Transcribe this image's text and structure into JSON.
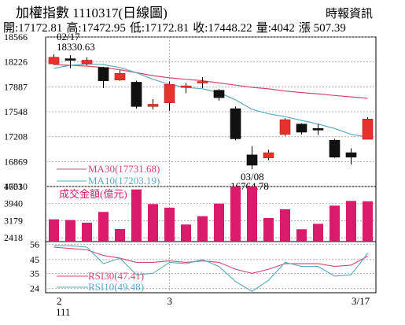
{
  "header": {
    "title": "加權指數 1110317(日線圖)",
    "source": "時報資訊",
    "stats": {
      "open": "開:17172.81",
      "high": "高:17472.95",
      "low": "低:17172.81",
      "close": "收:17448.22",
      "volume": "量:4042",
      "change": "漲 507.39"
    }
  },
  "colors": {
    "up": "#e8302c",
    "down": "#111111",
    "bar": "#d81b6a",
    "ma30": "#d8466e",
    "ma10": "#5aa9c6"
  },
  "chart_data": [
    {
      "type": "candlestick",
      "title": "加權指數 日線圖",
      "y_ticks": [
        "18566",
        "18226",
        "17887",
        "17548",
        "17208",
        "16869",
        "16530"
      ],
      "ylim": [
        16530,
        18566
      ],
      "annotations": [
        {
          "label": "02/17",
          "value": "18330.63"
        },
        {
          "label": "03/08",
          "value": "16764.78"
        }
      ],
      "candles": [
        {
          "open": 18200,
          "close": 18290,
          "high": 18330.63,
          "low": 18190
        },
        {
          "open": 18270,
          "close": 18260,
          "high": 18320,
          "low": 18140
        },
        {
          "open": 18200,
          "close": 18250,
          "high": 18290,
          "low": 18180
        },
        {
          "open": 18150,
          "close": 17970,
          "high": 18160,
          "low": 17870
        },
        {
          "open": 17980,
          "close": 18070,
          "high": 18110,
          "low": 17970
        },
        {
          "open": 17950,
          "close": 17620,
          "high": 17970,
          "low": 17590
        },
        {
          "open": 17620,
          "close": 17650,
          "high": 17720,
          "low": 17580
        },
        {
          "open": 17670,
          "close": 17920,
          "high": 17960,
          "low": 17560
        },
        {
          "open": 17880,
          "close": 17900,
          "high": 17940,
          "low": 17800
        },
        {
          "open": 17950,
          "close": 17960,
          "high": 18020,
          "low": 17870
        },
        {
          "open": 17840,
          "close": 17740,
          "high": 17860,
          "low": 17700
        },
        {
          "open": 17590,
          "close": 17180,
          "high": 17620,
          "low": 17160
        },
        {
          "open": 16960,
          "close": 16820,
          "high": 17080,
          "low": 16764.78
        },
        {
          "open": 16920,
          "close": 16990,
          "high": 17030,
          "low": 16890
        },
        {
          "open": 17240,
          "close": 17440,
          "high": 17460,
          "low": 17220
        },
        {
          "open": 17380,
          "close": 17270,
          "high": 17390,
          "low": 17240
        },
        {
          "open": 17320,
          "close": 17300,
          "high": 17380,
          "low": 17230
        },
        {
          "open": 17160,
          "close": 16930,
          "high": 17180,
          "low": 16920
        },
        {
          "open": 16990,
          "close": 16930,
          "high": 17050,
          "low": 16830
        },
        {
          "open": 17172.81,
          "close": 17448.22,
          "high": 17472.95,
          "low": 17172.81
        }
      ],
      "series": [
        {
          "name": "MA30",
          "legend": "MA30(17731.68)",
          "values": [
            18190,
            18180,
            18170,
            18150,
            18120,
            18080,
            18040,
            18010,
            17990,
            17970,
            17940,
            17910,
            17880,
            17860,
            17830,
            17810,
            17790,
            17770,
            17750,
            17731.68
          ]
        },
        {
          "name": "MA10",
          "legend": "MA10(17203.19)",
          "values": [
            18140,
            18180,
            18200,
            18190,
            18150,
            18080,
            17990,
            17920,
            17880,
            17860,
            17810,
            17710,
            17580,
            17520,
            17480,
            17430,
            17380,
            17320,
            17240,
            17203.19
          ]
        }
      ]
    },
    {
      "type": "bar",
      "title": "成交金額(億元)",
      "y_ticks": [
        "4701",
        "3940",
        "3179",
        "2418"
      ],
      "ylim": [
        2250,
        4701
      ],
      "values": [
        3240,
        3210,
        3090,
        3570,
        2810,
        4570,
        3920,
        3760,
        3010,
        3380,
        3940,
        4701,
        4701,
        3300,
        3690,
        2800,
        3040,
        3850,
        4060,
        4042
      ]
    },
    {
      "type": "line",
      "y_ticks": [
        "56",
        "45",
        "35",
        "24"
      ],
      "ylim": [
        21,
        58
      ],
      "series": [
        {
          "name": "RSI30",
          "legend": "RSI30(47.41)",
          "values": [
            54,
            53,
            52,
            48,
            46,
            43,
            43,
            44,
            43,
            44,
            43,
            38,
            35,
            38,
            42,
            42,
            42,
            40,
            41,
            47.41
          ]
        },
        {
          "name": "RSI10",
          "legend": "RSI10(49.48)",
          "values": [
            55,
            55,
            54,
            42,
            46,
            34,
            35,
            43,
            42,
            45,
            40,
            29,
            22,
            30,
            43,
            40,
            40,
            33,
            34,
            49.48
          ]
        }
      ],
      "x_ticks": [
        {
          "label": "2",
          "sub": "111",
          "index": 0
        },
        {
          "label": "3",
          "sub": "",
          "index": 7
        },
        {
          "label": "3/17",
          "sub": "",
          "index": 19
        }
      ]
    }
  ]
}
